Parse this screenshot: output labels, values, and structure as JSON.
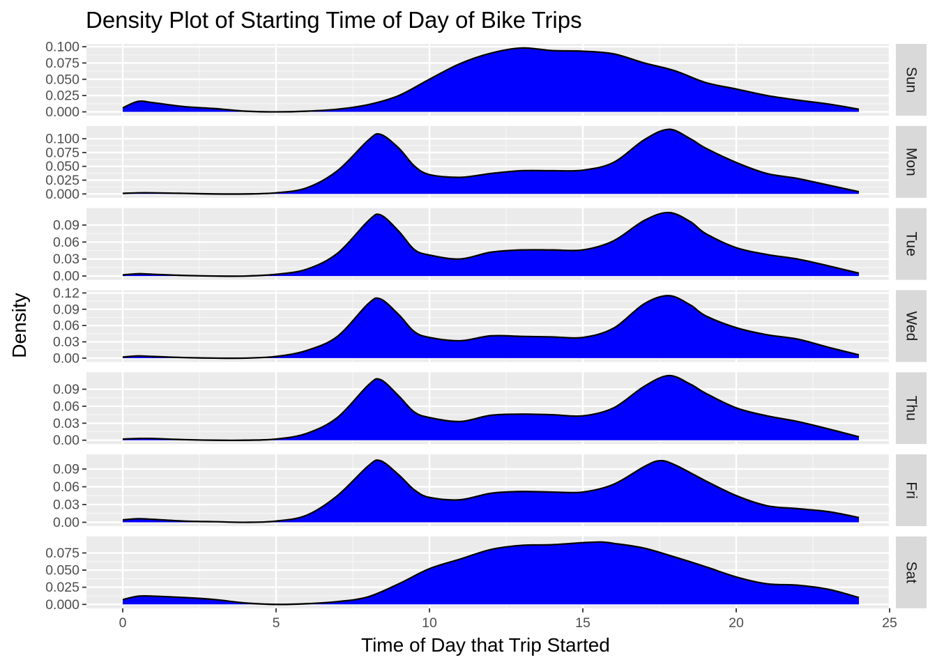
{
  "chart_data": {
    "type": "area",
    "title": "Density Plot of Starting Time of Day of Bike Trips",
    "xlabel": "Time of Day that Trip Started",
    "ylabel": "Density",
    "xlim": [
      0,
      25
    ],
    "x_ticks": [
      0,
      5,
      10,
      15,
      20,
      25
    ],
    "facet_by": "day",
    "fill_color": "#0000FF",
    "line_color": "#000000",
    "grid": true,
    "panels": [
      {
        "label": "Sun",
        "y_ticks": [
          0,
          0.025,
          0.05,
          0.075,
          0.1
        ],
        "y_tick_labels": [
          "0.000",
          "0.025",
          "0.050",
          "0.075",
          "0.100"
        ],
        "ylim": [
          0,
          0.1
        ],
        "x": [
          0,
          0.5,
          1,
          2,
          3,
          4,
          5,
          6,
          7,
          8,
          9,
          10,
          11,
          12,
          13,
          14,
          15,
          16,
          17,
          18,
          19,
          20,
          21,
          22,
          23,
          24
        ],
        "values": [
          0.006,
          0.016,
          0.014,
          0.008,
          0.005,
          0.001,
          0.0,
          0.001,
          0.004,
          0.011,
          0.025,
          0.05,
          0.074,
          0.09,
          0.098,
          0.094,
          0.093,
          0.089,
          0.075,
          0.063,
          0.045,
          0.035,
          0.025,
          0.018,
          0.012,
          0.004
        ]
      },
      {
        "label": "Mon",
        "y_ticks": [
          0,
          0.025,
          0.05,
          0.075,
          0.1
        ],
        "y_tick_labels": [
          "0.000",
          "0.025",
          "0.050",
          "0.075",
          "0.100"
        ],
        "ylim": [
          0,
          0.118
        ],
        "x": [
          0,
          0.5,
          1,
          2,
          3,
          4,
          5,
          6,
          7,
          8,
          8.4,
          9,
          9.5,
          10,
          11,
          12,
          13,
          14,
          15,
          16,
          17,
          17.8,
          18.5,
          19,
          20,
          21,
          22,
          23,
          24
        ],
        "values": [
          0.001,
          0.002,
          0.002,
          0.001,
          0.0,
          0.0,
          0.002,
          0.011,
          0.042,
          0.097,
          0.108,
          0.083,
          0.051,
          0.035,
          0.03,
          0.037,
          0.042,
          0.042,
          0.043,
          0.057,
          0.098,
          0.117,
          0.1,
          0.083,
          0.057,
          0.037,
          0.028,
          0.016,
          0.004
        ]
      },
      {
        "label": "Tue",
        "y_ticks": [
          0,
          0.03,
          0.06,
          0.09
        ],
        "y_tick_labels": [
          "0.00",
          "0.03",
          "0.06",
          "0.09"
        ],
        "ylim": [
          0,
          0.115
        ],
        "x": [
          0,
          0.5,
          1,
          2,
          3,
          4,
          5,
          6,
          7,
          8,
          8.4,
          9,
          9.5,
          10,
          11,
          12,
          13,
          14,
          15,
          16,
          17,
          17.8,
          18.5,
          19,
          20,
          21,
          22,
          23,
          24
        ],
        "values": [
          0.002,
          0.004,
          0.003,
          0.001,
          0.0,
          0.0,
          0.003,
          0.012,
          0.04,
          0.097,
          0.108,
          0.079,
          0.047,
          0.037,
          0.03,
          0.042,
          0.046,
          0.046,
          0.046,
          0.062,
          0.098,
          0.112,
          0.096,
          0.075,
          0.05,
          0.038,
          0.03,
          0.018,
          0.005
        ]
      },
      {
        "label": "Wed",
        "y_ticks": [
          0,
          0.03,
          0.06,
          0.09,
          0.12
        ],
        "y_tick_labels": [
          "0.00",
          "0.03",
          "0.06",
          "0.09",
          "0.12"
        ],
        "ylim": [
          0,
          0.12
        ],
        "x": [
          0,
          0.5,
          1,
          2,
          3,
          4,
          5,
          6,
          7,
          8,
          8.4,
          9,
          9.5,
          10,
          11,
          12,
          13,
          14,
          15,
          16,
          17,
          17.8,
          18.5,
          19,
          20,
          21,
          22,
          23,
          24
        ],
        "values": [
          0.002,
          0.004,
          0.003,
          0.001,
          0.0,
          0.0,
          0.003,
          0.014,
          0.04,
          0.1,
          0.109,
          0.08,
          0.049,
          0.038,
          0.032,
          0.041,
          0.04,
          0.039,
          0.038,
          0.055,
          0.1,
          0.115,
          0.098,
          0.078,
          0.056,
          0.043,
          0.035,
          0.02,
          0.006
        ]
      },
      {
        "label": "Thu",
        "y_ticks": [
          0,
          0.03,
          0.06,
          0.09
        ],
        "y_tick_labels": [
          "0.00",
          "0.03",
          "0.06",
          "0.09"
        ],
        "ylim": [
          0,
          0.115
        ],
        "x": [
          0,
          0.5,
          1,
          2,
          3,
          4,
          5,
          6,
          7,
          8,
          8.4,
          9,
          9.5,
          10,
          11,
          12,
          13,
          14,
          15,
          16,
          17,
          17.8,
          18.5,
          19,
          20,
          21,
          22,
          23,
          24
        ],
        "values": [
          0.002,
          0.003,
          0.003,
          0.001,
          0.0,
          0.0,
          0.002,
          0.012,
          0.04,
          0.097,
          0.107,
          0.078,
          0.05,
          0.04,
          0.033,
          0.044,
          0.046,
          0.045,
          0.043,
          0.057,
          0.095,
          0.114,
          0.099,
          0.083,
          0.057,
          0.043,
          0.033,
          0.02,
          0.006
        ]
      },
      {
        "label": "Fri",
        "y_ticks": [
          0,
          0.03,
          0.06,
          0.09
        ],
        "y_tick_labels": [
          "0.00",
          "0.03",
          "0.06",
          "0.09"
        ],
        "ylim": [
          0,
          0.11
        ],
        "x": [
          0,
          0.5,
          1,
          2,
          3,
          4,
          5,
          6,
          7,
          8,
          8.4,
          9,
          9.5,
          10,
          11,
          12,
          13,
          14,
          15,
          16,
          17,
          17.5,
          18,
          19,
          20,
          21,
          22,
          23,
          24
        ],
        "values": [
          0.004,
          0.006,
          0.005,
          0.002,
          0.001,
          0.0,
          0.002,
          0.012,
          0.045,
          0.095,
          0.104,
          0.08,
          0.055,
          0.042,
          0.038,
          0.049,
          0.052,
          0.051,
          0.051,
          0.064,
          0.094,
          0.104,
          0.097,
          0.07,
          0.045,
          0.028,
          0.023,
          0.018,
          0.008
        ]
      },
      {
        "label": "Sat",
        "y_ticks": [
          0,
          0.025,
          0.05,
          0.075
        ],
        "y_tick_labels": [
          "0.000",
          "0.025",
          "0.050",
          "0.075"
        ],
        "ylim": [
          0,
          0.095
        ],
        "x": [
          0,
          0.5,
          1,
          2,
          3,
          4,
          5,
          6,
          7,
          8,
          9,
          10,
          11,
          12,
          13,
          14,
          15,
          15.6,
          16,
          17,
          18,
          19,
          20,
          21,
          22,
          23,
          24
        ],
        "values": [
          0.007,
          0.012,
          0.012,
          0.01,
          0.007,
          0.002,
          0.0,
          0.001,
          0.004,
          0.011,
          0.03,
          0.052,
          0.066,
          0.08,
          0.086,
          0.087,
          0.09,
          0.091,
          0.089,
          0.082,
          0.069,
          0.055,
          0.04,
          0.03,
          0.028,
          0.022,
          0.01
        ]
      }
    ]
  }
}
